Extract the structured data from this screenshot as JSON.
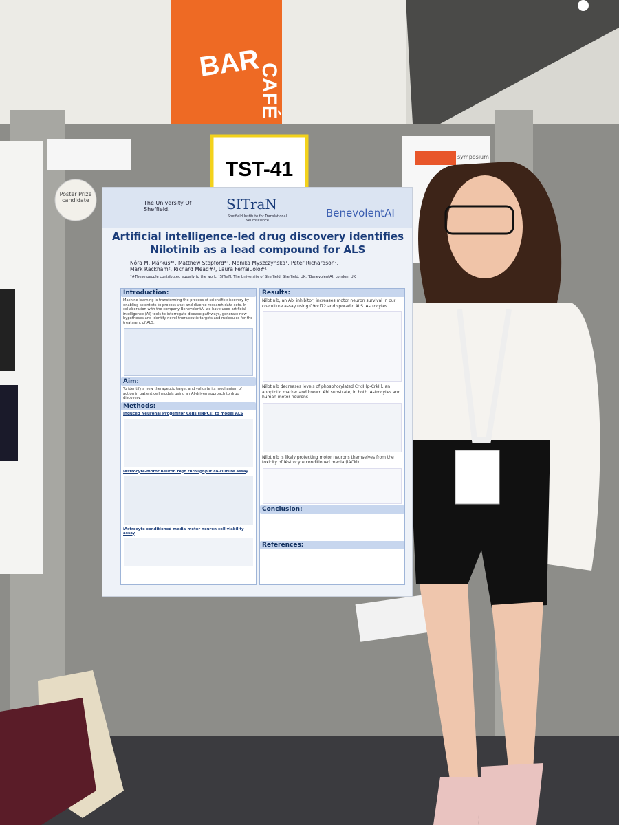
{
  "signs": {
    "bar": "BAR",
    "cafe": "CAFÉ"
  },
  "board_label": "TST-41",
  "prize_badge": "Poster Prize candidate",
  "side_sign": "symposium",
  "poster": {
    "logos": {
      "university": "The University Of Sheffield.",
      "institute": "SITraN",
      "institute_full": "Sheffield Institute for Translational Neuroscience",
      "company": "BenevolentAI"
    },
    "title": "Artificial intelligence-led drug discovery identifies Nilotinib as a lead compound for ALS",
    "authors": "Nóra M. Márkus*¹, Matthew Stopford*¹, Monika Myszczynska¹, Peter Richardson², Mark Rackham², Richard Mead#¹, Laura Ferraiuolo#¹",
    "affiliations": "*#These people contributed equally to the work. ¹SITraN, The University of Sheffield, Sheffield, UK; ²BenevolentAI, London, UK",
    "introduction": {
      "heading": "Introduction:",
      "text": "Machine learning is transforming the process of scientific discovery by enabling scientists to process vast and diverse research data sets. In collaboration with the company BenevolentAI we have used artificial intelligence (AI) tools to interrogate disease pathways, generate new hypotheses and identify novel therapeutic targets and molecules for the treatment of ALS."
    },
    "aim": {
      "heading": "Aim:",
      "text": "To identify a new therapeutic target and validate its mechanism of action in patient cell models using an AI-driven approach to drug discovery."
    },
    "methods": {
      "heading": "Methods:",
      "subheadings": [
        "Induced Neuronal Progenitor Cells (iNPCs) to model ALS",
        "iAstrocyte-motor neuron high throughput co-culture assay",
        "iAstrocyte conditioned media-motor neuron cell viability assay"
      ]
    },
    "results": {
      "heading": "Results:",
      "findings": [
        "Nilotinib, an Abl inhibitor, increases motor neuron survival in our co-culture assay using C9orf72 and sporadic ALS iAstrocytes",
        "Nilotinib decreases levels of phosphorylated CrkII (p-CrkII), an apoptotic marker and known Abl substrate, in both iAstrocytes and human motor neurons",
        "Nilotinib is likely protecting motor neurons themselves from the toxicity of iAstrocyte conditioned media (iACM)"
      ]
    },
    "conclusion": {
      "heading": "Conclusion:"
    },
    "references": {
      "heading": "References:"
    }
  }
}
